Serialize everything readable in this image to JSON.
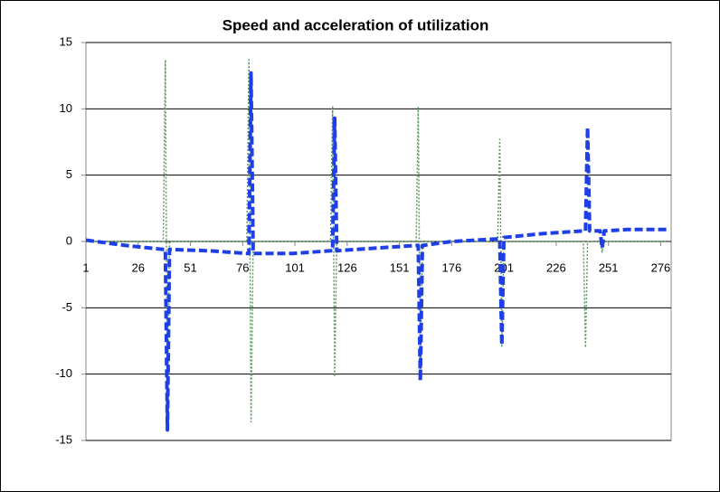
{
  "chart_data": {
    "type": "line",
    "title": "Speed and acceleration of utilization",
    "x": [
      1,
      20,
      38,
      39,
      40,
      41,
      60,
      78,
      79,
      80,
      81,
      100,
      118,
      119,
      120,
      121,
      140,
      159,
      160,
      161,
      162,
      176,
      198,
      199,
      200,
      201,
      220,
      239,
      240,
      241,
      242,
      247,
      248,
      249,
      260,
      280
    ],
    "series": [
      {
        "color": "#5b9a5b",
        "style": "dotted",
        "values": [
          0,
          0,
          0,
          13.7,
          -13.6,
          0,
          0,
          0,
          13.7,
          -13.6,
          0,
          0,
          0,
          10.2,
          -10.2,
          0,
          0,
          0,
          10.1,
          -10.1,
          0,
          0,
          0,
          7.7,
          -7.9,
          0,
          0,
          0,
          -8,
          0,
          0,
          0,
          -0.8,
          0,
          0,
          0
        ]
      },
      {
        "color": "#1f3fe6",
        "style": "dashed",
        "values": [
          0.1,
          -0.3,
          -0.6,
          -0.6,
          -14.2,
          -0.6,
          -0.7,
          -0.9,
          -0.9,
          12.7,
          -0.9,
          -0.9,
          -0.7,
          -0.7,
          9.3,
          -0.7,
          -0.5,
          -0.3,
          -0.3,
          -10.5,
          -0.3,
          0,
          0.2,
          0.2,
          -7.8,
          0.3,
          0.6,
          0.8,
          0.8,
          8.6,
          0.8,
          0.8,
          -0.5,
          0.8,
          0.9,
          0.9
        ]
      }
    ],
    "xlim": [
      1,
      281
    ],
    "xticks": [
      1,
      26,
      51,
      76,
      101,
      126,
      151,
      176,
      201,
      226,
      251,
      276
    ],
    "ylim": [
      -15,
      15
    ],
    "yticks": [
      -15,
      -10,
      -5,
      0,
      5,
      10,
      15
    ],
    "grid": true
  }
}
